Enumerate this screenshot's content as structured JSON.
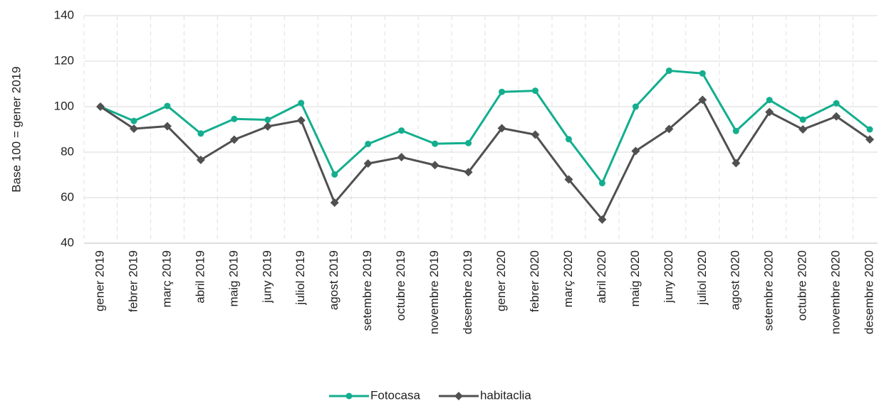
{
  "chart_data": {
    "type": "line",
    "y_label": "Base 100 = gener 2019",
    "categories": [
      "gener 2019",
      "febrer 2019",
      "març 2019",
      "abril 2019",
      "maig 2019",
      "juny 2019",
      "juliol 2019",
      "agost 2019",
      "setembre 2019",
      "octubre 2019",
      "novembre 2019",
      "desembre 2019",
      "gener 2020",
      "febrer 2020",
      "març 2020",
      "abril 2020",
      "maig 2020",
      "juny 2020",
      "juliol 2020",
      "agost 2020",
      "setembre 2020",
      "octubre 2020",
      "novembre 2020",
      "desembre 2020"
    ],
    "series": [
      {
        "name": "Fotocasa",
        "color": "#13ae8e",
        "marker": "circle",
        "values": [
          100,
          93.7,
          100.3,
          88.2,
          94.6,
          94.2,
          101.6,
          70.2,
          83.6,
          89.5,
          83.7,
          84,
          106.5,
          107,
          85.7,
          66.4,
          100,
          115.8,
          114.6,
          89.3,
          102.9,
          94.3,
          101.5,
          90
        ]
      },
      {
        "name": "habitaclia",
        "color": "#505050",
        "marker": "diamond",
        "values": [
          100,
          90.3,
          91.4,
          76.6,
          85.5,
          91.3,
          94,
          57.8,
          75,
          77.8,
          74.3,
          71.2,
          90.5,
          87.7,
          68,
          50.4,
          80.5,
          90.2,
          103,
          75.2,
          97.6,
          90,
          95.7,
          85.6
        ]
      }
    ],
    "ylim": [
      40,
      140
    ],
    "yticks": [
      40,
      60,
      80,
      100,
      120,
      140
    ],
    "grid": true,
    "legend": "bottom"
  }
}
